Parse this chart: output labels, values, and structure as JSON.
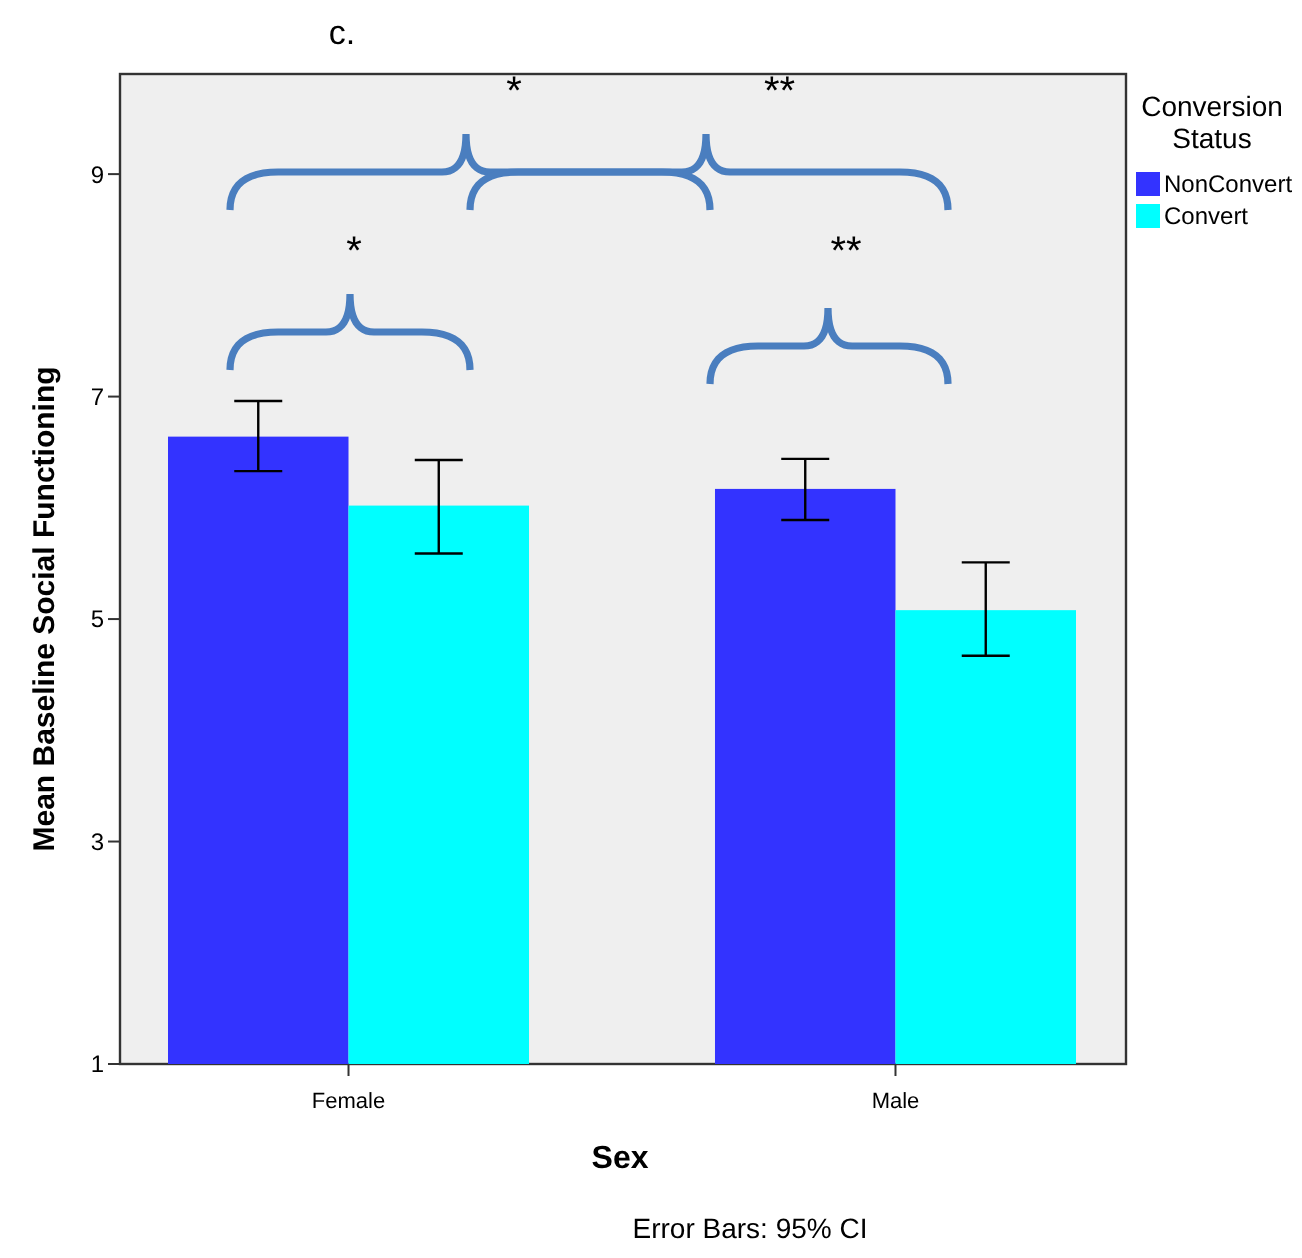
{
  "chart_data": {
    "type": "bar",
    "title": "c.",
    "xlabel": "Sex",
    "ylabel": "Mean Baseline Social Functioning",
    "legend_title": "Conversion Status",
    "categories": [
      "Female",
      "Male"
    ],
    "series": [
      {
        "name": "NonConvert",
        "color": "#3333ff",
        "values": [
          6.64,
          6.17
        ],
        "errors": [
          [
            6.33,
            6.96
          ],
          [
            5.89,
            6.44
          ]
        ]
      },
      {
        "name": "Convert",
        "color": "#00ffff",
        "values": [
          6.02,
          5.08
        ],
        "errors": [
          [
            5.59,
            6.43
          ],
          [
            4.67,
            5.51
          ]
        ]
      }
    ],
    "ylim": [
      1,
      9.9
    ],
    "yticks": [
      1,
      3,
      5,
      7,
      9
    ],
    "grid": false,
    "legend": "top right",
    "annotations": [
      "*",
      "**",
      "*",
      "**",
      "Error Bars: 95% CI"
    ]
  }
}
